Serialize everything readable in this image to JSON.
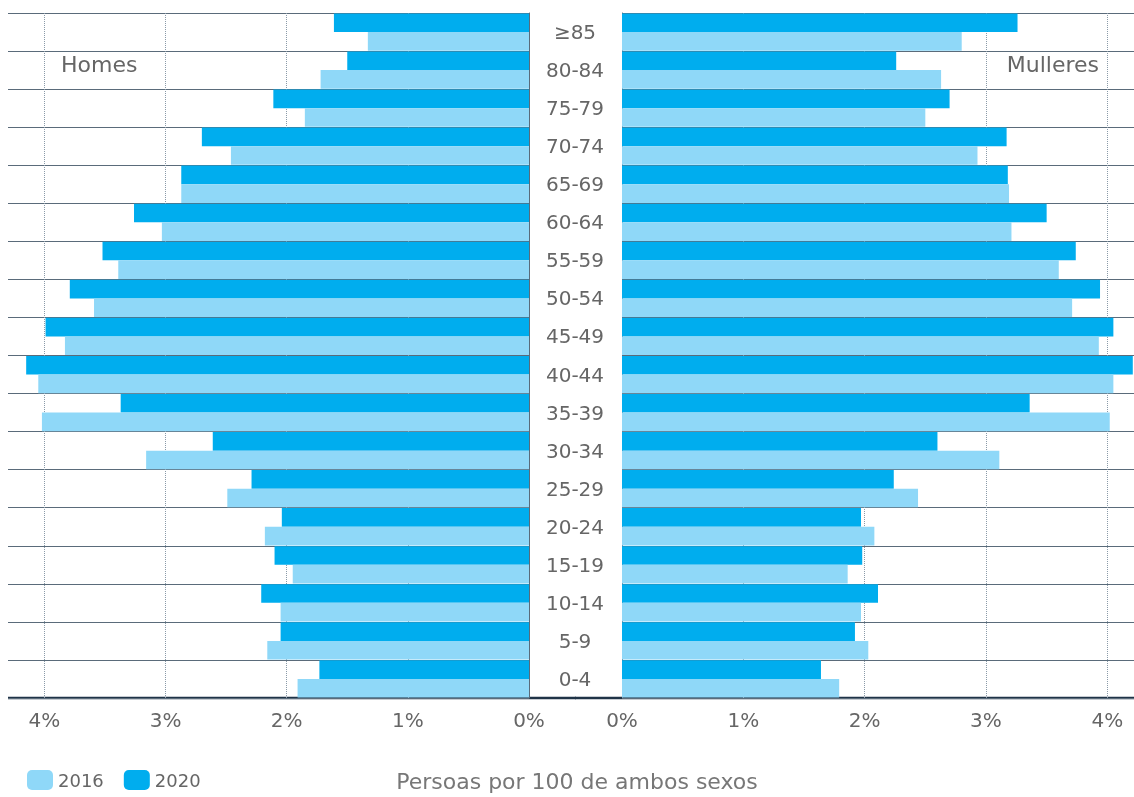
{
  "chart_data": [
    {
      "type": "bar",
      "orientation": "horizontal",
      "title": "Homes",
      "xlabel": "Persoas por 100 de ambos sexos",
      "legend": "bottom left",
      "grid": true,
      "categories": [
        "≥85",
        "80-84",
        "75-79",
        "70-74",
        "65-69",
        "60-64",
        "55-59",
        "50-54",
        "45-49",
        "40-44",
        "35-39",
        "30-34",
        "25-29",
        "20-24",
        "15-19",
        "10-14",
        "5-9",
        "0-4"
      ],
      "xlim": [
        4.3,
        0
      ],
      "xticks": [
        {
          "value": 4,
          "label": "4%"
        },
        {
          "value": 3,
          "label": "3%"
        },
        {
          "value": 2,
          "label": "2%"
        },
        {
          "value": 1,
          "label": "1%"
        },
        {
          "value": 0,
          "label": "0%"
        }
      ],
      "series": [
        {
          "name": "2016",
          "color": "#8fd8f8",
          "values": [
            1.33,
            1.72,
            1.85,
            2.46,
            2.87,
            3.03,
            3.39,
            3.59,
            3.83,
            4.05,
            4.02,
            3.16,
            2.49,
            2.18,
            1.95,
            2.05,
            2.16,
            1.91
          ]
        },
        {
          "name": "2020",
          "color": "#00adee",
          "values": [
            1.61,
            1.5,
            2.11,
            2.7,
            2.87,
            3.26,
            3.52,
            3.79,
            3.99,
            4.15,
            3.37,
            2.61,
            2.29,
            2.04,
            2.1,
            2.21,
            2.05,
            1.73
          ]
        }
      ]
    },
    {
      "type": "bar",
      "orientation": "horizontal",
      "title": "Mulleres",
      "grid": true,
      "tick_labels": "x",
      "xlim": [
        0,
        4.22
      ],
      "xticks": [
        {
          "value": 0,
          "label": "0%"
        },
        {
          "value": 1,
          "label": "1%"
        },
        {
          "value": 2,
          "label": "2%"
        },
        {
          "value": 3,
          "label": "3%"
        },
        {
          "value": 4,
          "label": "4%"
        }
      ],
      "series": [
        {
          "color": "#8fd8f8",
          "values": [
            2.8,
            2.63,
            2.5,
            2.93,
            3.19,
            3.21,
            3.6,
            3.71,
            3.93,
            4.05,
            4.02,
            3.11,
            2.44,
            2.08,
            1.86,
            1.97,
            2.03,
            1.79
          ]
        },
        {
          "color": "#00adee",
          "values": [
            3.26,
            2.26,
            2.7,
            3.17,
            3.18,
            3.5,
            3.74,
            3.94,
            4.05,
            4.21,
            3.36,
            2.6,
            2.24,
            1.97,
            1.98,
            2.11,
            1.92,
            1.64
          ]
        }
      ]
    }
  ]
}
